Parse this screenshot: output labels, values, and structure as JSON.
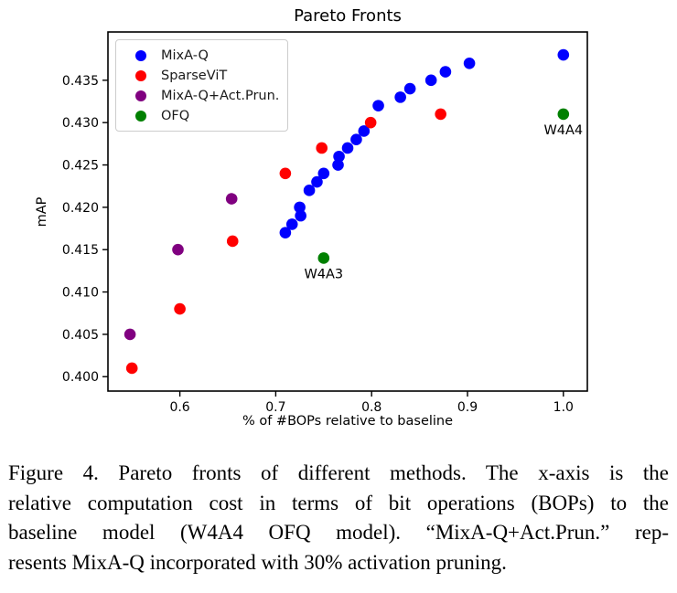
{
  "chart_data": {
    "type": "scatter",
    "title": "Pareto Fronts",
    "xlabel": "% of #BOPs relative to baseline",
    "ylabel": "mAP",
    "xlim": [
      0.525,
      1.025
    ],
    "ylim": [
      0.3983,
      0.4407
    ],
    "grid": false,
    "legend_position": "upper-left",
    "xticks": [
      0.6,
      0.7,
      0.8,
      0.9,
      1.0
    ],
    "xtick_labels": [
      "0.6",
      "0.7",
      "0.8",
      "0.9",
      "1.0"
    ],
    "yticks": [
      0.4,
      0.405,
      0.41,
      0.415,
      0.42,
      0.425,
      0.43,
      0.435
    ],
    "ytick_labels": [
      "0.400",
      "0.405",
      "0.410",
      "0.415",
      "0.420",
      "0.425",
      "0.430",
      "0.435"
    ],
    "series": [
      {
        "name": "MixA-Q",
        "color": "#0000ff",
        "points": [
          [
            0.71,
            0.417
          ],
          [
            0.717,
            0.418
          ],
          [
            0.726,
            0.419
          ],
          [
            0.725,
            0.42
          ],
          [
            0.735,
            0.422
          ],
          [
            0.743,
            0.423
          ],
          [
            0.75,
            0.424
          ],
          [
            0.765,
            0.425
          ],
          [
            0.766,
            0.426
          ],
          [
            0.775,
            0.427
          ],
          [
            0.784,
            0.428
          ],
          [
            0.792,
            0.429
          ],
          [
            0.807,
            0.432
          ],
          [
            0.83,
            0.433
          ],
          [
            0.84,
            0.434
          ],
          [
            0.862,
            0.435
          ],
          [
            0.877,
            0.436
          ],
          [
            0.902,
            0.437
          ],
          [
            1.0,
            0.438
          ]
        ]
      },
      {
        "name": "SparseViT",
        "color": "#ff0000",
        "points": [
          [
            0.55,
            0.401
          ],
          [
            0.6,
            0.408
          ],
          [
            0.655,
            0.416
          ],
          [
            0.71,
            0.424
          ],
          [
            0.748,
            0.427
          ],
          [
            0.799,
            0.43
          ],
          [
            0.872,
            0.431
          ]
        ]
      },
      {
        "name": "MixA-Q+Act.Prun.",
        "color": "#800080",
        "points": [
          [
            0.548,
            0.405
          ],
          [
            0.598,
            0.415
          ],
          [
            0.654,
            0.421
          ]
        ]
      },
      {
        "name": "OFQ",
        "color": "#008000",
        "points": [
          [
            0.75,
            0.414
          ],
          [
            1.0,
            0.431
          ]
        ]
      }
    ],
    "annotations": [
      {
        "text": "W4A3",
        "x": 0.75,
        "y": 0.414,
        "dy": 17
      },
      {
        "text": "W4A4",
        "x": 1.0,
        "y": 0.431,
        "dy": 17
      }
    ]
  },
  "caption": {
    "lines": [
      "Figure 4.  Pareto fronts of different methods.  The x-axis is the",
      "relative computation cost in terms of bit operations (BOPs) to the",
      "baseline model (W4A4 OFQ model). “MixA-Q+Act.Prun.” rep-",
      "resents MixA-Q incorporated with 30% activation pruning."
    ]
  }
}
